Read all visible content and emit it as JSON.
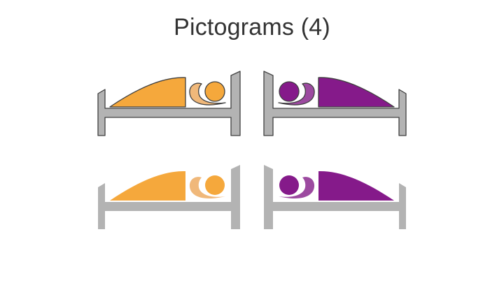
{
  "slide": {
    "title": "Pictograms (4)"
  },
  "colors": {
    "background": "#ffffff",
    "title_text": "#333333",
    "bed_frame": "#b3b3b3",
    "bed_outline": "#404040",
    "orange_blanket": "#f5a83c",
    "orange_body": "#f0b87a",
    "orange_head": "#f5a83c",
    "purple_blanket": "#851a8a",
    "purple_body": "#9c4aa0",
    "purple_head": "#851a8a"
  },
  "pictograms": [
    {
      "id": "bed-orange-outlined",
      "theme": "orange",
      "facing": "right",
      "outlined": true
    },
    {
      "id": "bed-purple-outlined",
      "theme": "purple",
      "facing": "left",
      "outlined": true
    },
    {
      "id": "bed-orange-plain",
      "theme": "orange",
      "facing": "right",
      "outlined": false
    },
    {
      "id": "bed-purple-plain",
      "theme": "purple",
      "facing": "left",
      "outlined": false
    }
  ]
}
